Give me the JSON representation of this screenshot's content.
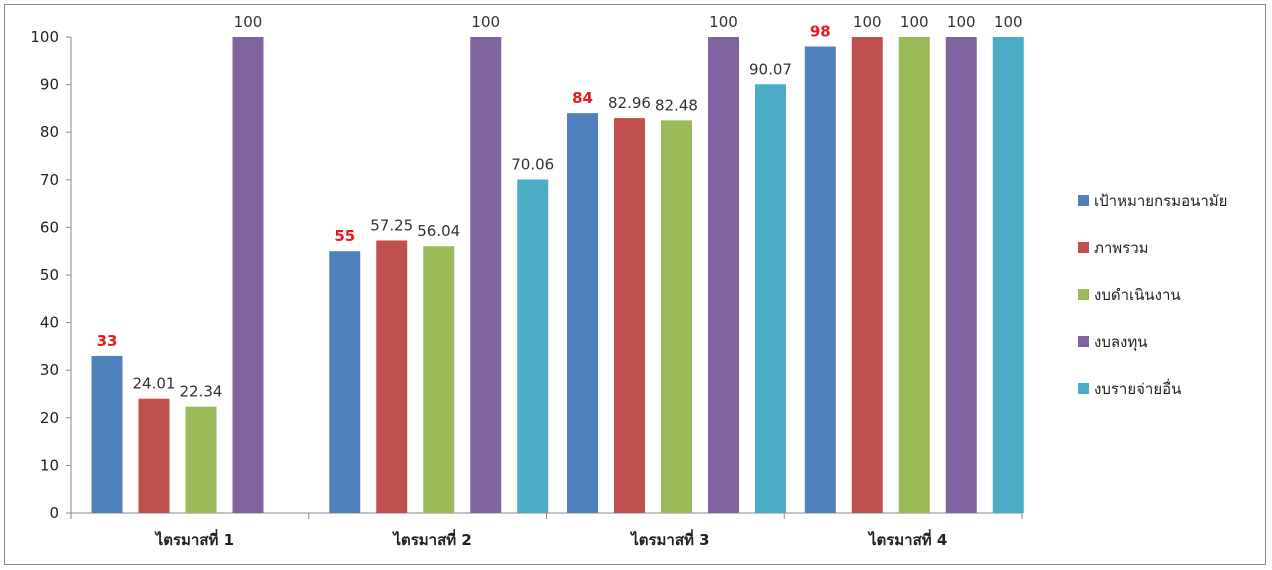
{
  "chart_data": {
    "type": "bar",
    "categories": [
      "ไตรมาสที่ 1",
      "ไตรมาสที่ 2",
      "ไตรมาสที่ 3",
      "ไตรมาสที่ 4"
    ],
    "series": [
      {
        "name": "เป้าหมายกรมอนามัย",
        "color": "#4f81bd",
        "values": [
          33,
          55,
          84,
          98
        ],
        "labels": [
          "33",
          "55",
          "84",
          "98"
        ],
        "label_color": "#e8191c"
      },
      {
        "name": "ภาพรวม",
        "color": "#c0504d",
        "values": [
          24.01,
          57.25,
          82.96,
          100
        ],
        "labels": [
          "24.01",
          "57.25",
          "82.96",
          "100"
        ]
      },
      {
        "name": "งบดำเนินงาน",
        "color": "#9bbb59",
        "values": [
          22.34,
          56.04,
          82.48,
          100
        ],
        "labels": [
          "22.34",
          "56.04",
          "82.48",
          "100"
        ]
      },
      {
        "name": "งบลงทุน",
        "color": "#8064a2",
        "values": [
          100,
          100,
          100,
          100
        ],
        "labels": [
          "100",
          "100",
          "100",
          "100"
        ]
      },
      {
        "name": "งบรายจ่ายอื่น",
        "color": "#4bacc6",
        "values": [
          null,
          70.06,
          90.07,
          100
        ],
        "labels": [
          "",
          "70.06",
          "90.07",
          "100"
        ]
      }
    ],
    "title": "",
    "xlabel": "",
    "ylabel": "",
    "ylim": [
      0,
      100
    ],
    "yticks": [
      "0",
      "10",
      "20",
      "30",
      "40",
      "50",
      "60",
      "70",
      "80",
      "90",
      "100"
    ],
    "grid": false,
    "legend": "right"
  }
}
